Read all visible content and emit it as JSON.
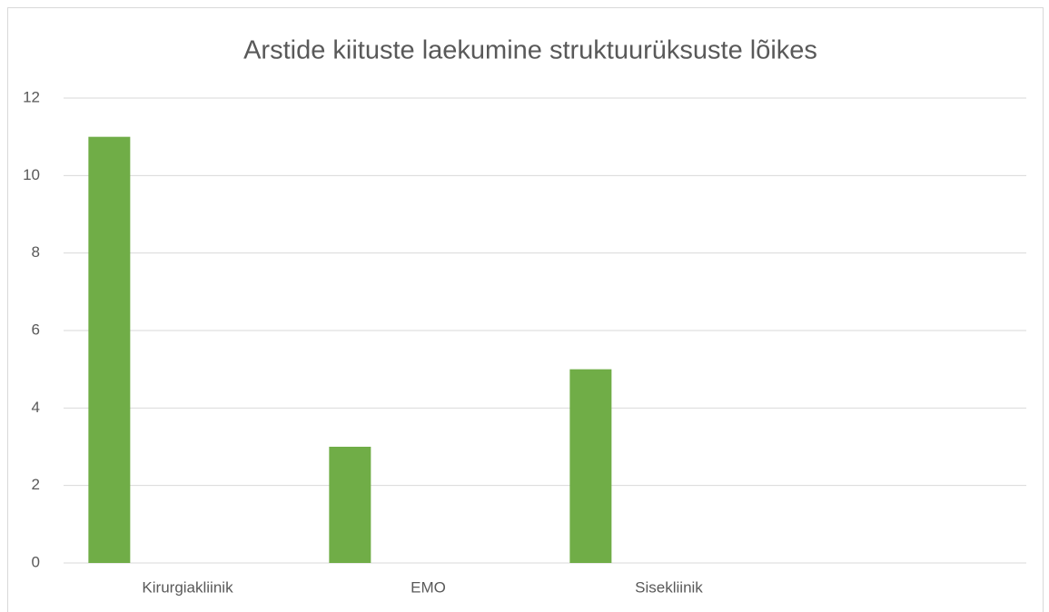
{
  "chart_data": {
    "type": "bar",
    "title": "Arstide kiituste laekumine struktuurüksuste lõikes",
    "categories": [
      "Kirurgiakliinik",
      "EMO",
      "Sisekliinik",
      null
    ],
    "values": [
      11,
      3,
      5,
      null
    ],
    "color": "#70ad47",
    "ylim": [
      0,
      12
    ],
    "yticks": [
      0,
      2,
      4,
      6,
      8,
      10,
      12
    ],
    "grid": true
  }
}
